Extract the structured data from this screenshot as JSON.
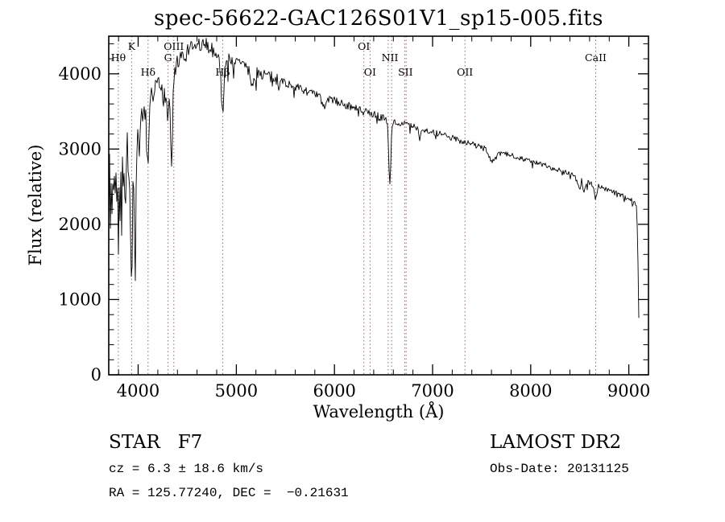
{
  "chart_data": {
    "type": "line",
    "title": "spec-56622-GAC126S01V1_sp15-005.fits",
    "xlabel": "Wavelength (Å)",
    "ylabel": "Flux (relative)",
    "xlim": [
      3700,
      9200
    ],
    "ylim": [
      0,
      4500
    ],
    "x_ticks": [
      4000,
      5000,
      6000,
      7000,
      8000,
      9000
    ],
    "y_ticks": [
      0,
      1000,
      2000,
      3000,
      4000
    ],
    "x_minor_step": 200,
    "y_minor_step": 200,
    "grid": false,
    "line_color": "#000000",
    "marker_line_color": "#a06868",
    "spectral_lines": [
      {
        "label": "Hθ",
        "wavelength": 3798,
        "label_row": 1
      },
      {
        "label": "K",
        "wavelength": 3933,
        "label_row": 0
      },
      {
        "label": "Hδ",
        "wavelength": 4101,
        "label_row": 2
      },
      {
        "label": "G",
        "wavelength": 4304,
        "label_row": 1
      },
      {
        "label": "OIII",
        "wavelength": 4363,
        "label_row": 0
      },
      {
        "label": "Hβ",
        "wavelength": 4861,
        "label_row": 2
      },
      {
        "label": "OI",
        "wavelength": 6300,
        "label_row": 0
      },
      {
        "label": "OI",
        "wavelength": 6363,
        "label_row": 2
      },
      {
        "label": "NII",
        "wavelength": 6548,
        "extra_wavelengths": [
          6583
        ],
        "label_row": 1
      },
      {
        "label": "SII",
        "wavelength": 6716,
        "extra_wavelengths": [
          6731
        ],
        "label_row": 2
      },
      {
        "label": "OII",
        "wavelength": 7330,
        "label_row": 2
      },
      {
        "label": "CaII",
        "wavelength": 8662,
        "label_row": 1
      }
    ],
    "series": [
      {
        "name": "spectrum",
        "points": [
          [
            3700,
            2150
          ],
          [
            3708,
            2750
          ],
          [
            3716,
            1900
          ],
          [
            3724,
            2600
          ],
          [
            3732,
            2050
          ],
          [
            3740,
            2700
          ],
          [
            3748,
            2250
          ],
          [
            3756,
            2850
          ],
          [
            3764,
            2400
          ],
          [
            3772,
            2900
          ],
          [
            3780,
            2350
          ],
          [
            3790,
            2650
          ],
          [
            3798,
            1700
          ],
          [
            3806,
            2500
          ],
          [
            3814,
            2150
          ],
          [
            3822,
            2850
          ],
          [
            3830,
            1600
          ],
          [
            3840,
            2900
          ],
          [
            3850,
            2350
          ],
          [
            3860,
            3000
          ],
          [
            3870,
            1950
          ],
          [
            3880,
            2850
          ],
          [
            3890,
            3050
          ],
          [
            3900,
            2450
          ],
          [
            3910,
            2900
          ],
          [
            3920,
            2100
          ],
          [
            3933,
            980
          ],
          [
            3942,
            2150
          ],
          [
            3951,
            2650
          ],
          [
            3960,
            1850
          ],
          [
            3970,
            1120
          ],
          [
            3980,
            2450
          ],
          [
            3990,
            2950
          ],
          [
            4000,
            3150
          ],
          [
            4010,
            2980
          ],
          [
            4020,
            3280
          ],
          [
            4032,
            3480
          ],
          [
            4045,
            3280
          ],
          [
            4060,
            3560
          ],
          [
            4080,
            3380
          ],
          [
            4101,
            2620
          ],
          [
            4120,
            3560
          ],
          [
            4140,
            3720
          ],
          [
            4160,
            3620
          ],
          [
            4180,
            3820
          ],
          [
            4200,
            3920
          ],
          [
            4220,
            3780
          ],
          [
            4240,
            3880
          ],
          [
            4260,
            3680
          ],
          [
            4280,
            3760
          ],
          [
            4304,
            3330
          ],
          [
            4320,
            3780
          ],
          [
            4340,
            2680
          ],
          [
            4360,
            3880
          ],
          [
            4380,
            4020
          ],
          [
            4400,
            4120
          ],
          [
            4420,
            4080
          ],
          [
            4440,
            4220
          ],
          [
            4460,
            4280
          ],
          [
            4481,
            4130
          ],
          [
            4500,
            4320
          ],
          [
            4520,
            4280
          ],
          [
            4540,
            4360
          ],
          [
            4560,
            4300
          ],
          [
            4580,
            4380
          ],
          [
            4600,
            4360
          ],
          [
            4620,
            4400
          ],
          [
            4640,
            4330
          ],
          [
            4660,
            4390
          ],
          [
            4680,
            4360
          ],
          [
            4700,
            4410
          ],
          [
            4720,
            4340
          ],
          [
            4740,
            4370
          ],
          [
            4760,
            4290
          ],
          [
            4780,
            4310
          ],
          [
            4800,
            4270
          ],
          [
            4820,
            4240
          ],
          [
            4840,
            3980
          ],
          [
            4861,
            3360
          ],
          [
            4880,
            4080
          ],
          [
            4900,
            4240
          ],
          [
            4920,
            4190
          ],
          [
            4940,
            4220
          ],
          [
            4960,
            4170
          ],
          [
            4980,
            4190
          ],
          [
            5000,
            4140
          ],
          [
            5040,
            4170
          ],
          [
            5080,
            4110
          ],
          [
            5120,
            4060
          ],
          [
            5170,
            3840
          ],
          [
            5210,
            4040
          ],
          [
            5250,
            4000
          ],
          [
            5300,
            3990
          ],
          [
            5350,
            3950
          ],
          [
            5400,
            3930
          ],
          [
            5450,
            3900
          ],
          [
            5500,
            3880
          ],
          [
            5550,
            3850
          ],
          [
            5600,
            3830
          ],
          [
            5650,
            3800
          ],
          [
            5700,
            3780
          ],
          [
            5750,
            3750
          ],
          [
            5800,
            3720
          ],
          [
            5850,
            3700
          ],
          [
            5890,
            3540
          ],
          [
            5930,
            3670
          ],
          [
            5980,
            3650
          ],
          [
            6030,
            3630
          ],
          [
            6080,
            3600
          ],
          [
            6130,
            3580
          ],
          [
            6180,
            3550
          ],
          [
            6230,
            3530
          ],
          [
            6280,
            3500
          ],
          [
            6330,
            3480
          ],
          [
            6380,
            3460
          ],
          [
            6430,
            3440
          ],
          [
            6480,
            3420
          ],
          [
            6520,
            3400
          ],
          [
            6545,
            3280
          ],
          [
            6563,
            2470
          ],
          [
            6585,
            3250
          ],
          [
            6610,
            3370
          ],
          [
            6660,
            3350
          ],
          [
            6700,
            3340
          ],
          [
            6750,
            3320
          ],
          [
            6800,
            3300
          ],
          [
            6850,
            3280
          ],
          [
            6870,
            3140
          ],
          [
            6890,
            3260
          ],
          [
            6940,
            3250
          ],
          [
            6990,
            3230
          ],
          [
            7040,
            3210
          ],
          [
            7090,
            3190
          ],
          [
            7140,
            3170
          ],
          [
            7190,
            3150
          ],
          [
            7240,
            3130
          ],
          [
            7290,
            3110
          ],
          [
            7340,
            3090
          ],
          [
            7390,
            3070
          ],
          [
            7440,
            3050
          ],
          [
            7490,
            3030
          ],
          [
            7540,
            3010
          ],
          [
            7590,
            2860
          ],
          [
            7620,
            2830
          ],
          [
            7650,
            2900
          ],
          [
            7700,
            2950
          ],
          [
            7750,
            2930
          ],
          [
            7800,
            2920
          ],
          [
            7850,
            2900
          ],
          [
            7900,
            2880
          ],
          [
            7950,
            2860
          ],
          [
            8000,
            2840
          ],
          [
            8050,
            2820
          ],
          [
            8100,
            2800
          ],
          [
            8150,
            2780
          ],
          [
            8200,
            2760
          ],
          [
            8250,
            2740
          ],
          [
            8300,
            2720
          ],
          [
            8350,
            2700
          ],
          [
            8400,
            2680
          ],
          [
            8450,
            2650
          ],
          [
            8498,
            2460
          ],
          [
            8520,
            2590
          ],
          [
            8542,
            2410
          ],
          [
            8570,
            2570
          ],
          [
            8600,
            2550
          ],
          [
            8630,
            2530
          ],
          [
            8662,
            2340
          ],
          [
            8690,
            2510
          ],
          [
            8720,
            2490
          ],
          [
            8760,
            2470
          ],
          [
            8800,
            2450
          ],
          [
            8850,
            2420
          ],
          [
            8900,
            2400
          ],
          [
            8950,
            2370
          ],
          [
            9000,
            2340
          ],
          [
            9030,
            2320
          ],
          [
            9060,
            2290
          ],
          [
            9080,
            2230
          ],
          [
            9090,
            1750
          ],
          [
            9098,
            1100
          ],
          [
            9105,
            420
          ]
        ]
      }
    ],
    "noise": {
      "seed": 7,
      "spike_prob": 0.06,
      "spike_scale": 2.8,
      "segments": [
        {
          "to": 4000,
          "amp": 215
        },
        {
          "to": 4450,
          "amp": 135
        },
        {
          "to": 5500,
          "amp": 85
        },
        {
          "to": 6600,
          "amp": 55
        },
        {
          "to": 7500,
          "amp": 42
        },
        {
          "to": 9050,
          "amp": 33
        },
        {
          "to": 9200,
          "amp": 14
        }
      ]
    }
  },
  "footer": {
    "classification": "STAR   F7",
    "survey": "LAMOST DR2",
    "cz_line": "cz = 6.3 ± 18.6 km/s",
    "obs_date_line": "Obs-Date: 20131125",
    "coords_line": "RA = 125.77240, DEC =  −0.21631"
  }
}
